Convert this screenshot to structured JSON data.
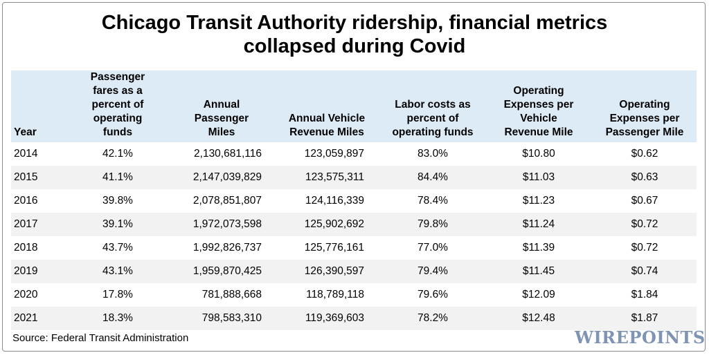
{
  "title_line1": "Chicago Transit Authority ridership, financial metrics",
  "title_line2": "collapsed during Covid",
  "chart_data": {
    "type": "table",
    "title": "Chicago Transit Authority ridership, financial metrics collapsed during Covid",
    "columns": [
      "Year",
      "Passenger fares as a percent of operating funds",
      "Annual Passenger Miles",
      "Annual Vehicle Revenue Miles",
      "Labor costs as percent of operating funds",
      "Operating Expenses per Vehicle Revenue Mile",
      "Operating Expenses per Passenger Mile"
    ],
    "rows": [
      [
        "2014",
        "42.1%",
        "2,130,681,116",
        "123,059,897",
        "83.0%",
        "$10.80",
        "$0.62"
      ],
      [
        "2015",
        "41.1%",
        "2,147,039,829",
        "123,575,311",
        "84.4%",
        "$11.03",
        "$0.63"
      ],
      [
        "2016",
        "39.8%",
        "2,078,851,807",
        "124,116,339",
        "78.4%",
        "$11.23",
        "$0.67"
      ],
      [
        "2017",
        "39.1%",
        "1,972,073,598",
        "125,902,692",
        "79.8%",
        "$11.24",
        "$0.72"
      ],
      [
        "2018",
        "43.7%",
        "1,992,826,737",
        "125,776,161",
        "77.0%",
        "$11.39",
        "$0.72"
      ],
      [
        "2019",
        "43.1%",
        "1,959,870,425",
        "126,390,597",
        "79.4%",
        "$11.45",
        "$0.74"
      ],
      [
        "2020",
        "17.8%",
        "781,888,668",
        "118,789,118",
        "79.6%",
        "$12.09",
        "$1.84"
      ],
      [
        "2021",
        "18.3%",
        "798,583,310",
        "119,369,603",
        "78.2%",
        "$12.48",
        "$1.87"
      ]
    ]
  },
  "source": "Source: Federal Transit Administration",
  "logo": "WIREPOINTS",
  "colors": {
    "header_bg": "#ddebf7",
    "stripe_bg": "#f2f2f2",
    "logo": "#7f93b3"
  }
}
